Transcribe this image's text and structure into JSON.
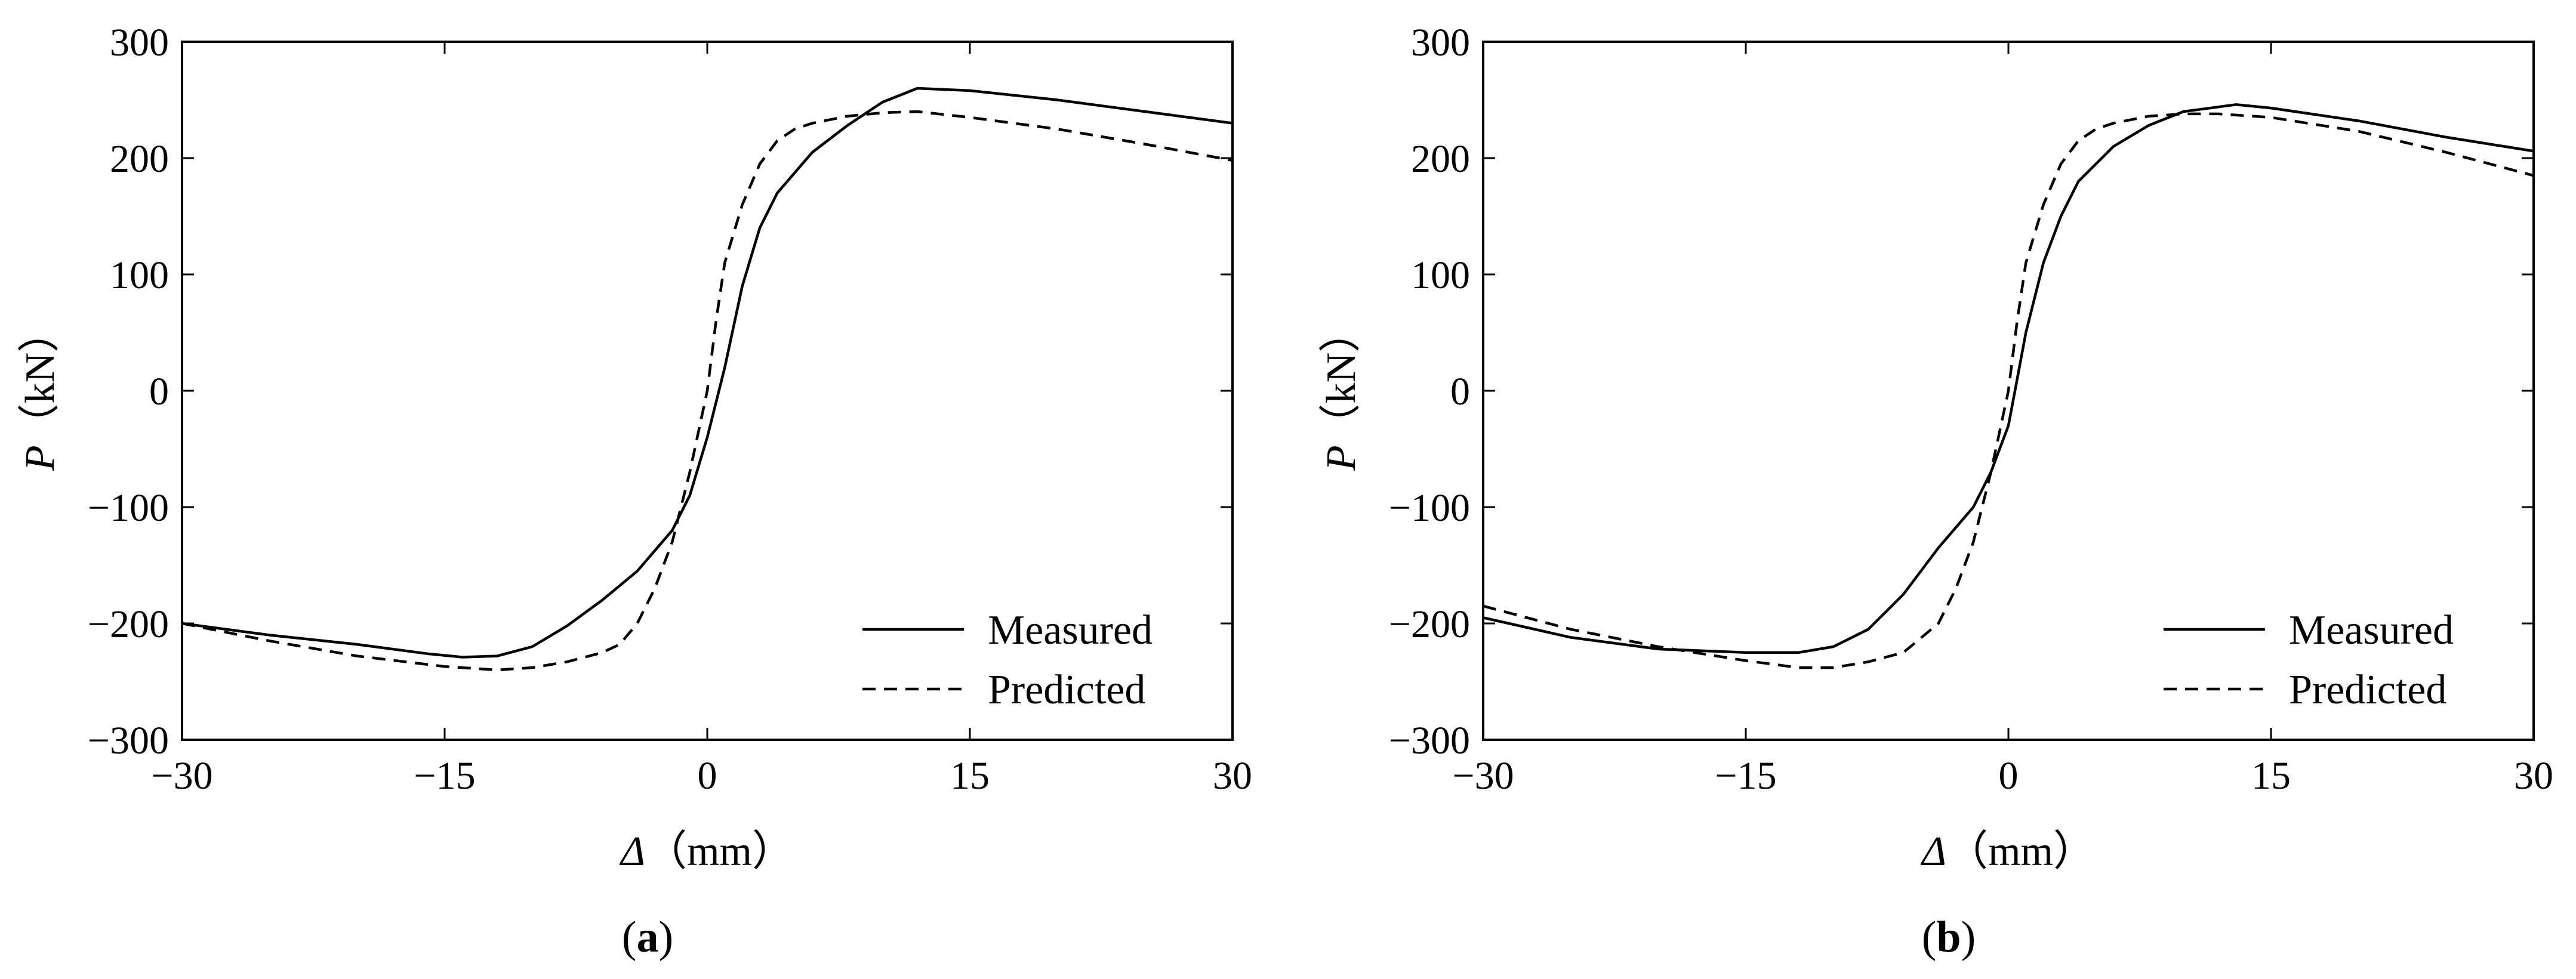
{
  "chart_data": [
    {
      "type": "line",
      "panel_label": "a",
      "xlabel_symbol": "Δ",
      "xlabel_unit": "（mm）",
      "ylabel_symbol": "P",
      "ylabel_unit": "（kN）",
      "xlim": [
        -30,
        30
      ],
      "ylim": [
        -300,
        300
      ],
      "xticks": [
        -30,
        -15,
        0,
        15,
        30
      ],
      "xtick_labels": [
        "−30",
        "−15",
        "0",
        "15",
        "30"
      ],
      "yticks": [
        300,
        200,
        100,
        0,
        -100,
        -200,
        -300
      ],
      "ytick_labels": [
        "300",
        "200",
        "100",
        "0",
        "−100",
        "−200",
        "−300"
      ],
      "grid": false,
      "legend_position": "bottom-right",
      "series": [
        {
          "name": "Measured",
          "style": "solid",
          "x": [
            -30,
            -25,
            -20,
            -16,
            -14,
            -12,
            -10,
            -8,
            -6,
            -4,
            -2,
            -1,
            0,
            0.5,
            1,
            2,
            3,
            4,
            6,
            8,
            10,
            12,
            15,
            20,
            25,
            30
          ],
          "y": [
            -200,
            -210,
            -218,
            -226,
            -229,
            -228,
            -220,
            -202,
            -180,
            -155,
            -120,
            -90,
            -40,
            -10,
            20,
            90,
            140,
            170,
            205,
            228,
            248,
            260,
            258,
            250,
            240,
            230
          ]
        },
        {
          "name": "Predicted",
          "style": "dashed",
          "x": [
            -30,
            -25,
            -20,
            -15,
            -12,
            -10,
            -8,
            -6,
            -5,
            -4,
            -3,
            -2,
            -1,
            0,
            0.5,
            1,
            2,
            3,
            4,
            5,
            6,
            8,
            10,
            12,
            15,
            20,
            25,
            30
          ],
          "y": [
            -200,
            -215,
            -228,
            -237,
            -240,
            -238,
            -233,
            -225,
            -218,
            -200,
            -170,
            -130,
            -70,
            0,
            60,
            110,
            160,
            195,
            215,
            225,
            230,
            236,
            239,
            240,
            235,
            225,
            212,
            198
          ]
        }
      ]
    },
    {
      "type": "line",
      "panel_label": "b",
      "xlabel_symbol": "Δ",
      "xlabel_unit": "（mm）",
      "ylabel_symbol": "P",
      "ylabel_unit": "（kN）",
      "xlim": [
        -30,
        30
      ],
      "ylim": [
        -300,
        300
      ],
      "xticks": [
        -30,
        -15,
        0,
        15,
        30
      ],
      "xtick_labels": [
        "−30",
        "−15",
        "0",
        "15",
        "30"
      ],
      "yticks": [
        300,
        200,
        100,
        0,
        -100,
        -200,
        -300
      ],
      "ytick_labels": [
        "300",
        "200",
        "100",
        "0",
        "−100",
        "−200",
        "−300"
      ],
      "grid": false,
      "legend_position": "bottom-right",
      "series": [
        {
          "name": "Measured",
          "style": "solid",
          "x": [
            -30,
            -25,
            -20,
            -15,
            -12,
            -10,
            -8,
            -6,
            -4,
            -2,
            -1,
            0,
            0.5,
            1,
            2,
            3,
            4,
            6,
            8,
            10,
            13,
            15,
            20,
            25,
            30
          ],
          "y": [
            -195,
            -212,
            -222,
            -225,
            -225,
            -220,
            -205,
            -175,
            -135,
            -100,
            -70,
            -30,
            10,
            50,
            110,
            150,
            180,
            210,
            228,
            240,
            246,
            243,
            232,
            218,
            206
          ]
        },
        {
          "name": "Predicted",
          "style": "dashed",
          "x": [
            -30,
            -25,
            -20,
            -15,
            -12,
            -10,
            -8,
            -6,
            -4,
            -3,
            -2,
            -1,
            0,
            0.5,
            1,
            2,
            3,
            4,
            5,
            6,
            8,
            10,
            12,
            15,
            20,
            25,
            30
          ],
          "y": [
            -185,
            -205,
            -220,
            -232,
            -238,
            -238,
            -233,
            -225,
            -200,
            -170,
            -130,
            -70,
            0,
            60,
            110,
            160,
            195,
            215,
            225,
            230,
            236,
            238,
            238,
            235,
            223,
            205,
            185
          ]
        }
      ]
    }
  ]
}
